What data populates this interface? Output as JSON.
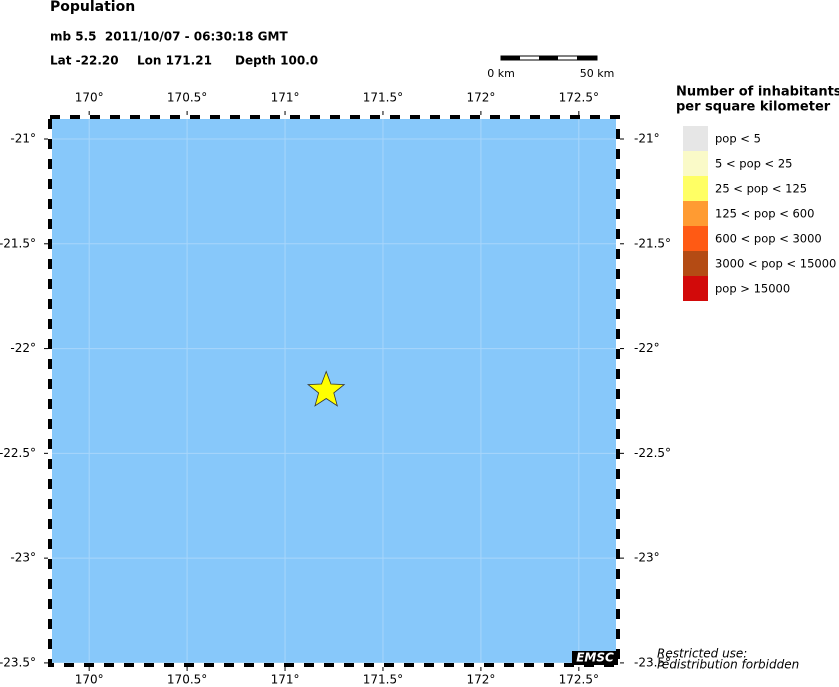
{
  "header": {
    "title": "Population",
    "event": "mb 5.5  2011/10/07 - 06:30:18 GMT",
    "lat": "Lat -22.20",
    "lon": "Lon 171.21",
    "depth": "Depth 100.0"
  },
  "scale_bar": {
    "left": "0 km",
    "right": "50 km"
  },
  "map": {
    "xlim": [
      169.8,
      172.7
    ],
    "ylim": [
      -23.51,
      -20.895
    ],
    "water_color": "#87c8fa",
    "xticks": [
      {
        "value": 170,
        "label": "170°"
      },
      {
        "value": 170.5,
        "label": "170.5°"
      },
      {
        "value": 171,
        "label": "171°"
      },
      {
        "value": 171.5,
        "label": "171.5°"
      },
      {
        "value": 172,
        "label": "172°"
      },
      {
        "value": 172.5,
        "label": "172.5°"
      }
    ],
    "yticks": [
      {
        "value": -21,
        "label": "-21°"
      },
      {
        "value": -21.5,
        "label": "-21.5°"
      },
      {
        "value": -22,
        "label": "-22°"
      },
      {
        "value": -22.5,
        "label": "-22.5°"
      },
      {
        "value": -23,
        "label": "-23°"
      },
      {
        "value": -23.5,
        "label": "-23.5°"
      }
    ],
    "epicenter": {
      "lon": 171.21,
      "lat": -22.2,
      "color": "#ffff00"
    }
  },
  "legend": {
    "title": [
      "Number of inhabitants",
      "per square kilometer"
    ],
    "items": [
      {
        "label": "pop < 5",
        "color": "#e6e6e6"
      },
      {
        "label": "5 < pop < 25",
        "color": "#fafac8"
      },
      {
        "label": "25 < pop < 125",
        "color": "#ffff64"
      },
      {
        "label": "125 < pop < 600",
        "color": "#ff9b32"
      },
      {
        "label": "600 < pop < 3000",
        "color": "#ff5a14"
      },
      {
        "label": "3000 < pop < 15000",
        "color": "#b44b14"
      },
      {
        "label": "pop > 15000",
        "color": "#d20a0a"
      }
    ]
  },
  "footer": {
    "badge": "EMSC",
    "notice": [
      "Restricted use:",
      "redistribution forbidden"
    ]
  }
}
